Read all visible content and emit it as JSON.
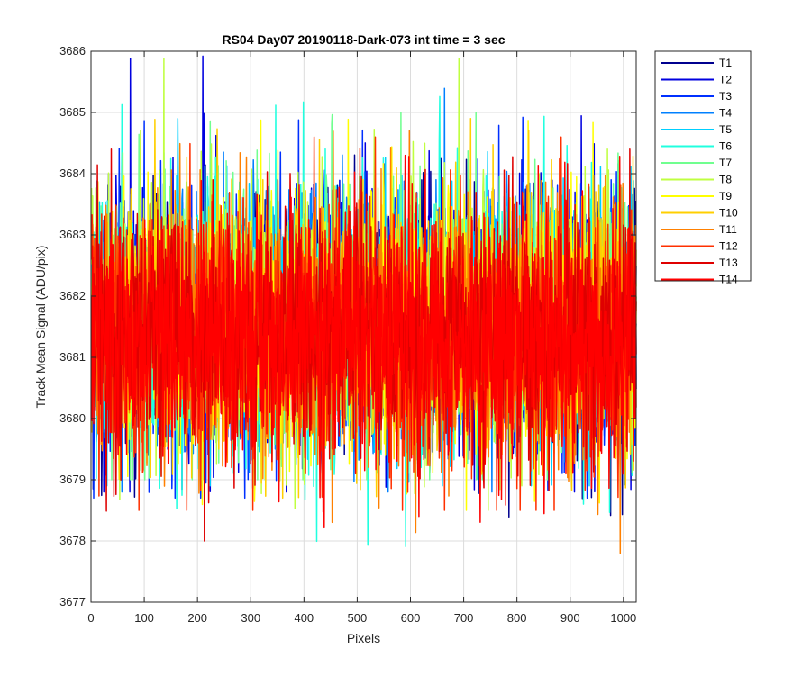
{
  "chart_data": {
    "type": "line",
    "title": "RS04 Day07 20190118-Dark-073 int time = 3 sec",
    "xlabel": "Pixels",
    "ylabel": "Track Mean Signal (ADU/pix)",
    "xlim": [
      0,
      1024
    ],
    "ylim": [
      3677,
      3686
    ],
    "xticks": [
      "0",
      "100",
      "200",
      "300",
      "400",
      "500",
      "600",
      "700",
      "800",
      "900",
      "1000"
    ],
    "yticks": [
      "3677",
      "3678",
      "3679",
      "3680",
      "3681",
      "3682",
      "3683",
      "3684",
      "3685",
      "3686"
    ],
    "grid": true,
    "legend_position": "outside-top-right",
    "x_range": [
      1,
      1024
    ],
    "series": [
      {
        "name": "T1",
        "color": "#00008f",
        "mean": 3681.6,
        "min": 3678.3,
        "max": 3685.2
      },
      {
        "name": "T2",
        "color": "#0000df",
        "mean": 3681.6,
        "min": 3678.8,
        "max": 3686.0
      },
      {
        "name": "T3",
        "color": "#0030ff",
        "mean": 3681.6,
        "min": 3678.7,
        "max": 3685.0
      },
      {
        "name": "T4",
        "color": "#0080ff",
        "mean": 3681.6,
        "min": 3678.8,
        "max": 3685.5
      },
      {
        "name": "T5",
        "color": "#00cfff",
        "mean": 3681.6,
        "min": 3678.9,
        "max": 3685.0
      },
      {
        "name": "T6",
        "color": "#20ffdf",
        "mean": 3681.6,
        "min": 3677.8,
        "max": 3685.3
      },
      {
        "name": "T7",
        "color": "#70ff8f",
        "mean": 3681.6,
        "min": 3679.0,
        "max": 3685.0
      },
      {
        "name": "T8",
        "color": "#bfff40",
        "mean": 3681.6,
        "min": 3678.5,
        "max": 3686.0
      },
      {
        "name": "T9",
        "color": "#ffff00",
        "mean": 3681.5,
        "min": 3678.5,
        "max": 3685.0
      },
      {
        "name": "T10",
        "color": "#ffcf00",
        "mean": 3681.5,
        "min": 3678.7,
        "max": 3684.9
      },
      {
        "name": "T11",
        "color": "#ff8000",
        "mean": 3681.4,
        "min": 3677.7,
        "max": 3684.7
      },
      {
        "name": "T12",
        "color": "#ff3000",
        "mean": 3681.4,
        "min": 3678.5,
        "max": 3684.6
      },
      {
        "name": "T13",
        "color": "#df0000",
        "mean": 3681.4,
        "min": 3678.0,
        "max": 3684.4
      },
      {
        "name": "T14",
        "color": "#ff0000",
        "mean": 3681.3,
        "min": 3678.2,
        "max": 3684.3
      }
    ]
  }
}
